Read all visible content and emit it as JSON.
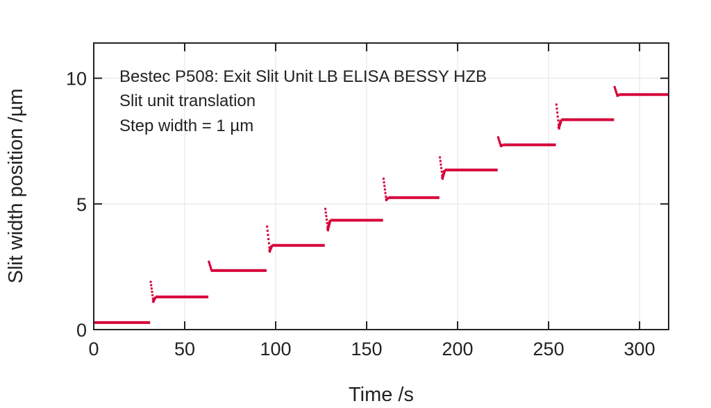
{
  "chart_data": {
    "type": "scatter",
    "title": "",
    "annotations": [
      "Bestec P508: Exit Slit Unit LB ELISA BESSY HZB",
      "Slit unit translation",
      "Step width = 1 µm"
    ],
    "xlabel": "Time /s",
    "ylabel": "Slit width position /µm",
    "xlim": [
      0,
      316
    ],
    "ylim": [
      0,
      11.4
    ],
    "xticks": [
      0,
      50,
      100,
      150,
      200,
      250,
      300
    ],
    "yticks": [
      0,
      5,
      10
    ],
    "grid": true,
    "color": "#d6003a",
    "steps": [
      {
        "start": 0,
        "end": 31,
        "level": 0.28,
        "peak": null,
        "dip": null
      },
      {
        "start": 31,
        "end": 63,
        "level": 1.3,
        "peak": 1.9,
        "dip": 1.1
      },
      {
        "start": 63,
        "end": 95,
        "level": 2.35,
        "peak": 2.7,
        "dip": 2.35
      },
      {
        "start": 95,
        "end": 127,
        "level": 3.35,
        "peak": 4.1,
        "dip": 3.1
      },
      {
        "start": 127,
        "end": 159,
        "level": 4.35,
        "peak": 4.8,
        "dip": 3.95
      },
      {
        "start": 159,
        "end": 190,
        "level": 5.25,
        "peak": 6.0,
        "dip": 5.15
      },
      {
        "start": 190,
        "end": 222,
        "level": 6.35,
        "peak": 6.85,
        "dip": 6.0
      },
      {
        "start": 222,
        "end": 254,
        "level": 7.35,
        "peak": 7.65,
        "dip": 7.3
      },
      {
        "start": 254,
        "end": 286,
        "level": 8.35,
        "peak": 8.95,
        "dip": 8.0
      },
      {
        "start": 286,
        "end": 316,
        "level": 9.35,
        "peak": 9.65,
        "dip": 9.3
      }
    ]
  }
}
